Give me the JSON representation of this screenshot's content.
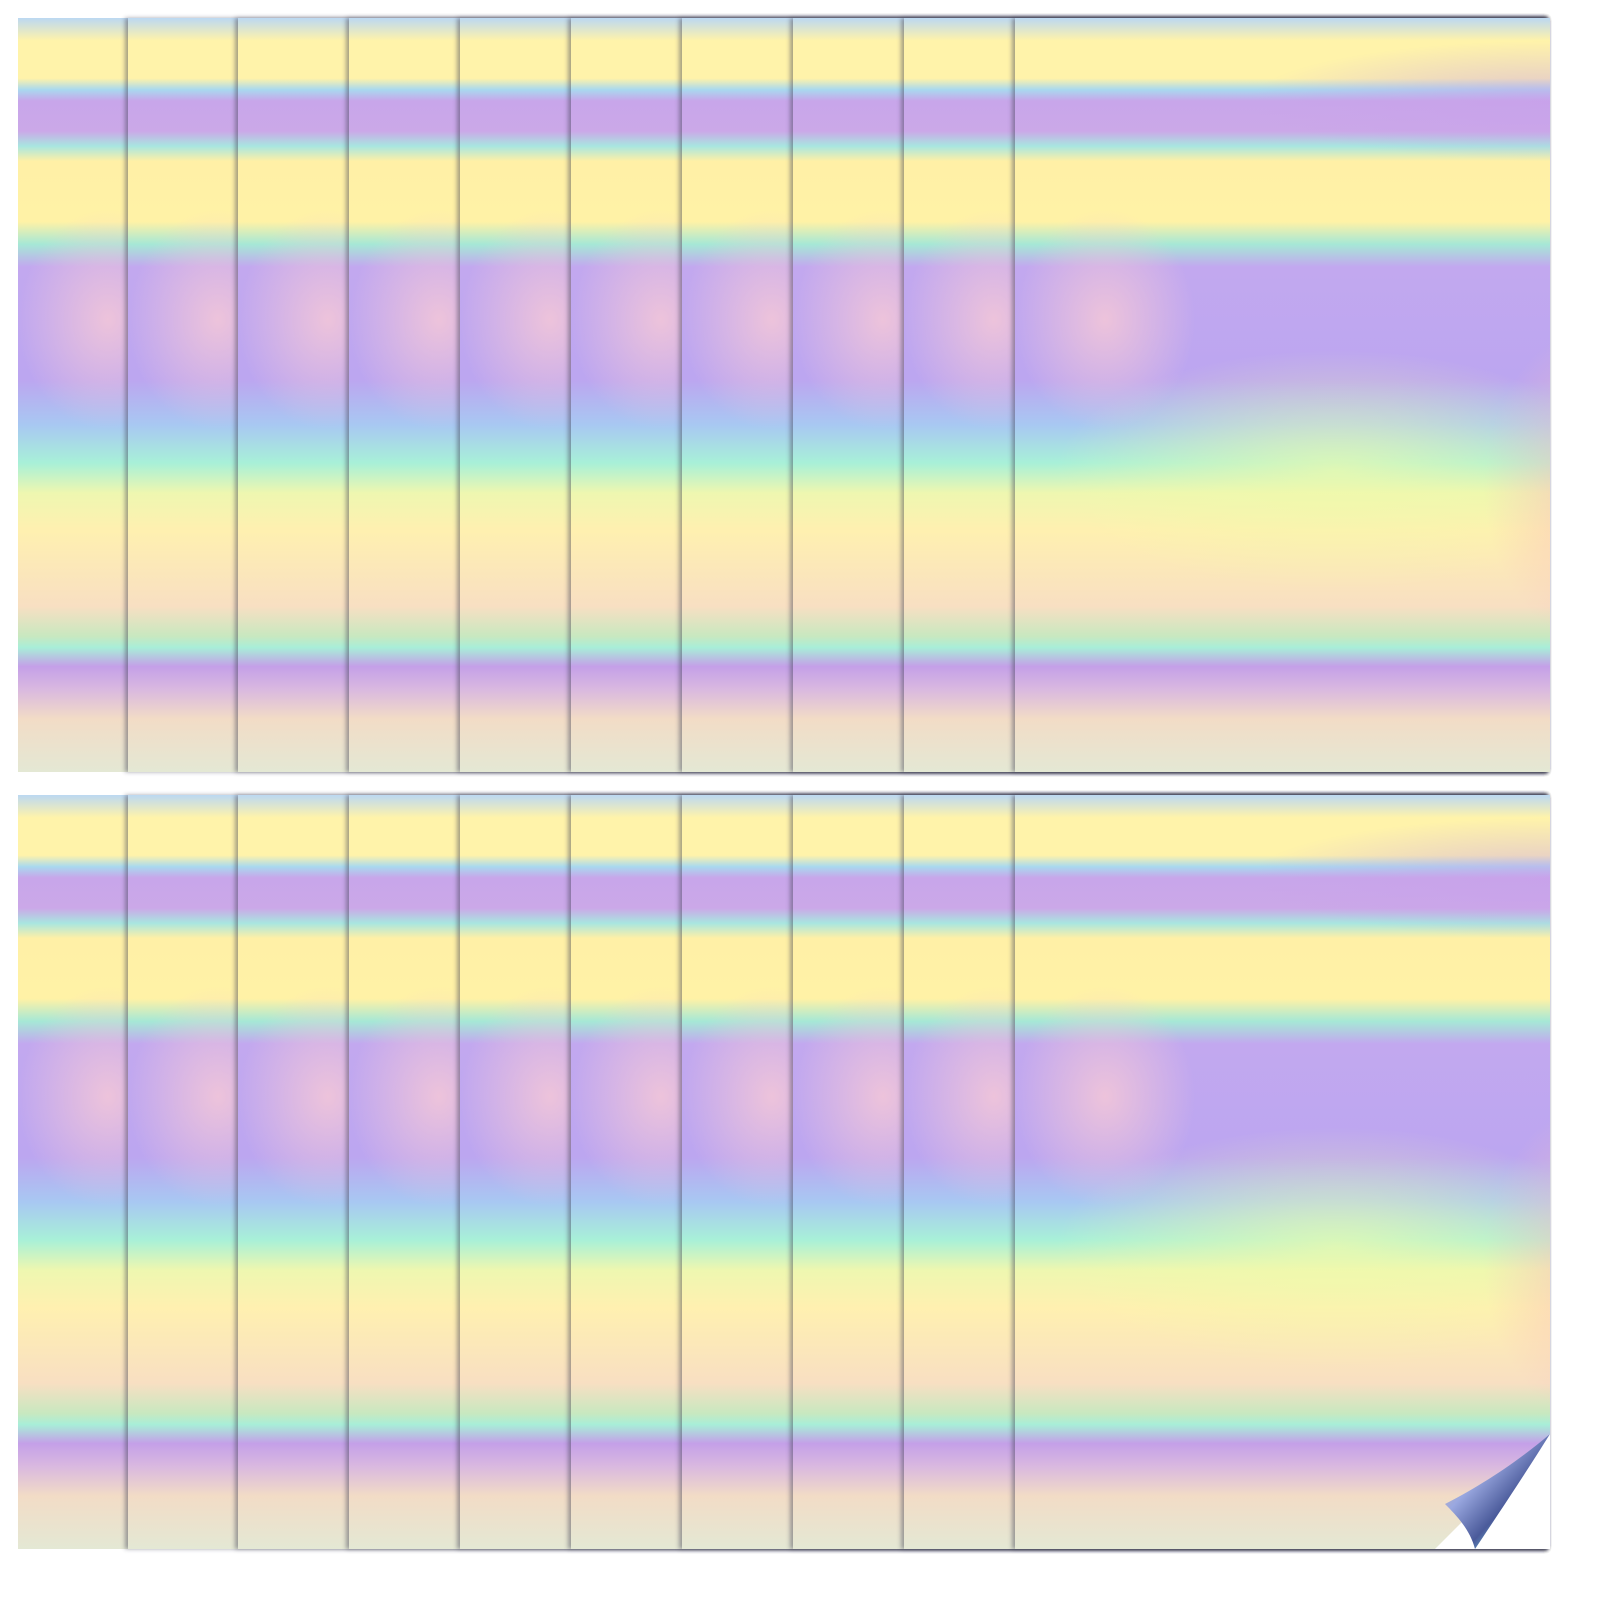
{
  "image": {
    "sheet_stacks": 2,
    "sheets_per_stack": 10,
    "colors": {
      "yellow": "#fff3aa",
      "purple": "#c2a8ef",
      "cyan": "#a8eed8",
      "pink": "#f5c8d7",
      "background": "#ffffff"
    },
    "corner_curl": true
  }
}
